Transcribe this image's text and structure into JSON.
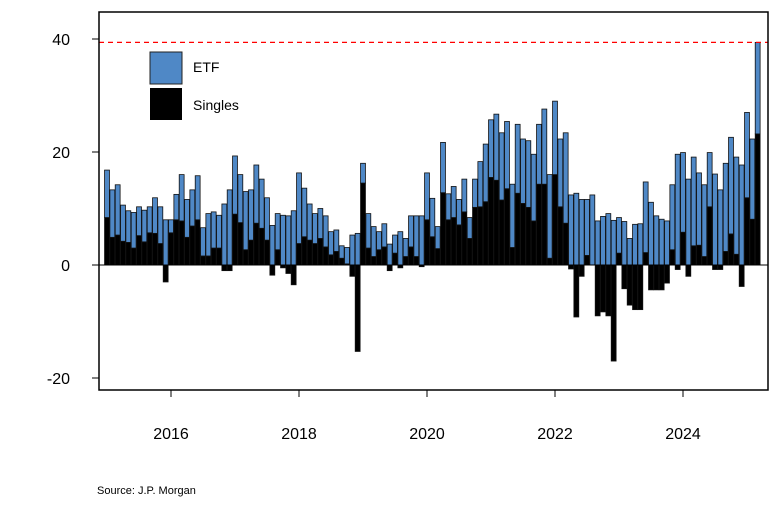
{
  "chart_data": {
    "type": "bar",
    "stacked": true,
    "title": "",
    "xlabel": "",
    "ylabel": "",
    "ylim": [
      -21,
      46
    ],
    "yticks": [
      -20,
      0,
      20,
      40
    ],
    "xtick_labels": [
      "2016",
      "2018",
      "2020",
      "2022",
      "2024"
    ],
    "grid": false,
    "legend_position": "top-left",
    "reference_line": {
      "value": 39.4,
      "color": "#ff0000",
      "style": "dashed"
    },
    "x_start": "2015-01",
    "x_end": "2025-03",
    "frequency": "monthly",
    "series": [
      {
        "name": "ETF",
        "color": "#4f88c6",
        "values": [
          8.4,
          8.4,
          8.9,
          6.4,
          5.6,
          6.3,
          5.1,
          5.6,
          4.6,
          6.3,
          6.5,
          8.0,
          2.3,
          4.5,
          8.2,
          6.7,
          6.4,
          7.8,
          5.0,
          7.5,
          6.4,
          5.8,
          10.8,
          13.3,
          10.3,
          8.5,
          10.3,
          8.9,
          10.3,
          8.7,
          7.5,
          7.0,
          6.4,
          8.8,
          8.7,
          9.6,
          12.5,
          8.6,
          6.4,
          5.3,
          5.3,
          5.5,
          4.1,
          3.8,
          2.2,
          2.9,
          5.3,
          5.6,
          3.5,
          6.1,
          5.3,
          3.2,
          4.1,
          3.7,
          3.2,
          5.9,
          3.2,
          5.5,
          7.2,
          8.7,
          8.3,
          6.8,
          3.9,
          8.9,
          4.6,
          5.5,
          4.5,
          5.8,
          3.7,
          5.0,
          8.0,
          10.2,
          10.2,
          11.7,
          11.9,
          11.9,
          11.2,
          12.2,
          11.4,
          11.8,
          11.8,
          10.6,
          13.3,
          14.8,
          13.0,
          12.0,
          16.0,
          12.4,
          12.7,
          11.6,
          9.9,
          12.4,
          7.8,
          8.6,
          9.1,
          7.9,
          6.3,
          7.7,
          4.7,
          7.2,
          7.3,
          12.5,
          11.1,
          8.7,
          8.1,
          7.8,
          11.5,
          19.6,
          14.1,
          15.2,
          15.7,
          12.8,
          12.7,
          9.6,
          16.1,
          13.3,
          15.6,
          17.1,
          17.2,
          17.7,
          15.1,
          14.2,
          16.2
        ]
      },
      {
        "name": "Singles",
        "color": "#000000",
        "values": [
          8.4,
          4.9,
          5.3,
          4.2,
          4.0,
          3.0,
          5.2,
          4.1,
          5.7,
          5.6,
          3.8,
          -3.0,
          5.7,
          8.0,
          7.8,
          4.9,
          6.9,
          8.0,
          1.6,
          1.6,
          3.0,
          3.0,
          -1.0,
          -1.0,
          9.0,
          7.5,
          2.7,
          4.4,
          7.4,
          6.5,
          4.4,
          -1.8,
          2.7,
          -0.5,
          -1.5,
          -3.5,
          3.8,
          5.0,
          4.4,
          3.8,
          4.7,
          3.2,
          1.8,
          2.4,
          1.2,
          0.2,
          -2.0,
          -15.3,
          14.5,
          3.0,
          1.5,
          2.7,
          3.2,
          -1.0,
          2.1,
          -0.5,
          1.5,
          3.2,
          1.5,
          -0.3,
          8.0,
          5.0,
          2.9,
          12.8,
          8.0,
          8.4,
          7.1,
          9.4,
          4.7,
          10.2,
          10.3,
          11.2,
          15.5,
          15.0,
          11.5,
          13.5,
          3.1,
          12.7,
          10.9,
          10.2,
          7.8,
          14.3,
          14.3,
          1.2,
          16.0,
          10.3,
          7.4,
          -0.7,
          -9.2,
          -2.0,
          1.7,
          0.0,
          -9.0,
          -8.3,
          -9.0,
          -17.0,
          2.1,
          -4.2,
          -7.1,
          -7.9,
          -7.9,
          2.2,
          -4.4,
          -4.4,
          -4.4,
          -3.2,
          2.7,
          -0.8,
          5.8,
          -2.0,
          3.4,
          3.5,
          1.5,
          10.3,
          -0.8,
          -0.8,
          2.4,
          5.5,
          1.9,
          -3.8,
          11.9,
          8.1,
          23.2
        ]
      }
    ]
  },
  "source": "Source: J.P. Morgan"
}
